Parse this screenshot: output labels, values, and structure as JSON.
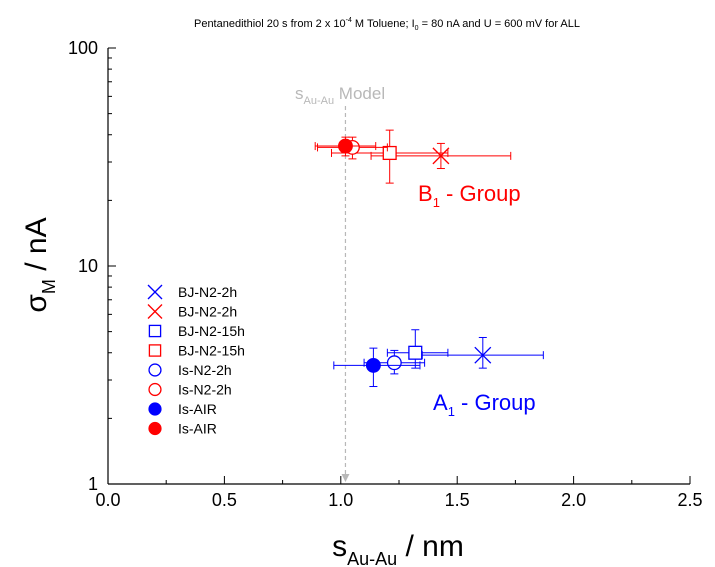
{
  "chart_data": {
    "type": "scatter",
    "title": {
      "main": "Pentanedithiol 20 s from 2 x 10",
      "sup": "-4",
      "mid": " M Toluene; I",
      "sub": "0",
      "end": " = 80 nA and U = 600 mV for ALL"
    },
    "xlabel": {
      "main": "s",
      "sub": "Au-Au",
      "rest": " / nm"
    },
    "ylabel": {
      "main": "σ",
      "sub": "M",
      "rest": " / nA"
    },
    "xlim": [
      0.0,
      2.5
    ],
    "ylim": [
      1,
      100
    ],
    "yscale": "log",
    "x_ticks": [
      "0.0",
      "0.5",
      "1.0",
      "1.5",
      "2.0",
      "2.5"
    ],
    "y_ticks": [
      "1",
      "10",
      "100"
    ],
    "grid": false,
    "legend_position": "left-center",
    "series": [
      {
        "name": "BJ-N2-2h",
        "marker": "x",
        "color": "#0000ff",
        "x": 1.61,
        "y": 3.9,
        "xerr": [
          0.26,
          0.26
        ],
        "yerr": [
          0.5,
          0.8
        ]
      },
      {
        "name": "BJ-N2-2h",
        "marker": "x",
        "color": "#ff0000",
        "x": 1.43,
        "y": 32.0,
        "xerr": [
          0.3,
          0.3
        ],
        "yerr": [
          4.0,
          4.5
        ]
      },
      {
        "name": "BJ-N2-15h",
        "marker": "square-open",
        "color": "#0000ff",
        "x": 1.32,
        "y": 4.0,
        "xerr": [
          0.12,
          0.14
        ],
        "yerr": [
          0.6,
          1.1
        ]
      },
      {
        "name": "BJ-N2-15h",
        "marker": "square-open",
        "color": "#ff0000",
        "x": 1.21,
        "y": 33.0,
        "xerr": [
          0.25,
          0.25
        ],
        "yerr": [
          9.0,
          9.0
        ]
      },
      {
        "name": "Is-N2-2h",
        "marker": "circle-open",
        "color": "#0000ff",
        "x": 1.23,
        "y": 3.6,
        "xerr": [
          0.13,
          0.13
        ],
        "yerr": [
          0.4,
          0.5
        ]
      },
      {
        "name": "Is-N2-2h",
        "marker": "circle-open",
        "color": "#ff0000",
        "x": 1.05,
        "y": 35.0,
        "xerr": [
          0.15,
          0.15
        ],
        "yerr": [
          4.0,
          4.0
        ]
      },
      {
        "name": "Is-AIR",
        "marker": "circle-filled",
        "color": "#0000ff",
        "x": 1.14,
        "y": 3.5,
        "xerr": [
          0.17,
          0.2
        ],
        "yerr": [
          0.7,
          0.7
        ]
      },
      {
        "name": "Is-AIR",
        "marker": "circle-filled",
        "color": "#ff0000",
        "x": 1.02,
        "y": 35.5,
        "xerr": [
          0.13,
          0.13
        ],
        "yerr": [
          3.5,
          3.5
        ]
      }
    ],
    "annotations": {
      "model_line": {
        "x": 1.02,
        "label_main": "s",
        "label_sub": "Au-Au",
        "label_rest": " Model",
        "color": "#b8b8b8"
      },
      "groups": [
        {
          "label_main": "B",
          "label_sub": "1",
          "label_rest": " - Group",
          "color": "#ff0000"
        },
        {
          "label_main": "A",
          "label_sub": "1",
          "label_rest": " - Group",
          "color": "#0000ff"
        }
      ]
    }
  }
}
